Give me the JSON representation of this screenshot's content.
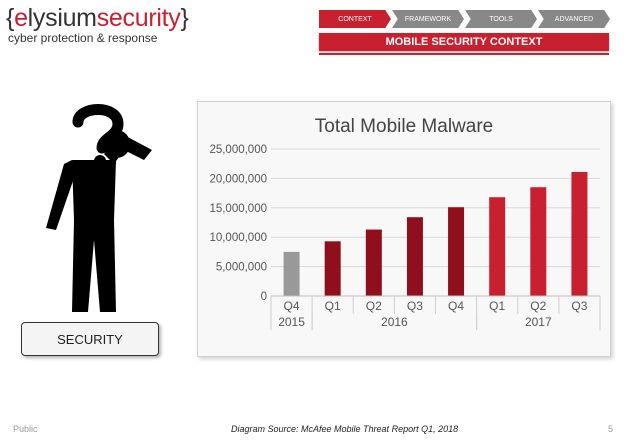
{
  "logo": {
    "brace_open": "{",
    "part1": "e",
    "part2": "lysium",
    "part3": "security",
    "brace_close": "}",
    "tagline": "cyber protection & response"
  },
  "nav": {
    "items": [
      "CONTEXT",
      "FRAMEWORK",
      "TOOLS",
      "ADVANCED"
    ],
    "active_color": "#c8202f",
    "inactive_color": "#888888"
  },
  "banner": {
    "title": "MOBILE SECURITY CONTEXT"
  },
  "figure": {
    "icon": "person-question-icon",
    "label": "SECURITY"
  },
  "footer": {
    "left": "Public",
    "source": "Diagram Source: McAfee Mobile Threat Report Q1, 2018",
    "page": "5"
  },
  "chart_data": {
    "type": "bar",
    "title": "Total Mobile Malware",
    "categories": [
      "Q4",
      "Q1",
      "Q2",
      "Q3",
      "Q4",
      "Q1",
      "Q2",
      "Q3"
    ],
    "year_groups": [
      {
        "label": "2015",
        "count": 1
      },
      {
        "label": "2016",
        "count": 4
      },
      {
        "label": "2017",
        "count": 3
      }
    ],
    "values": [
      7500000,
      9300000,
      11300000,
      13400000,
      15100000,
      16800000,
      18500000,
      21100000
    ],
    "bar_colors": [
      "#999999",
      "#8f0f1c",
      "#8f0f1c",
      "#8f0f1c",
      "#8f0f1c",
      "#c8202f",
      "#c8202f",
      "#c8202f"
    ],
    "ylim": [
      0,
      25000000
    ],
    "yticks": [
      0,
      5000000,
      10000000,
      15000000,
      20000000,
      25000000
    ],
    "ytick_labels": [
      "0",
      "5,000,000",
      "10,000,000",
      "15,000,000",
      "20,000,000",
      "25,000,000"
    ],
    "grid": true,
    "legend": "none"
  }
}
